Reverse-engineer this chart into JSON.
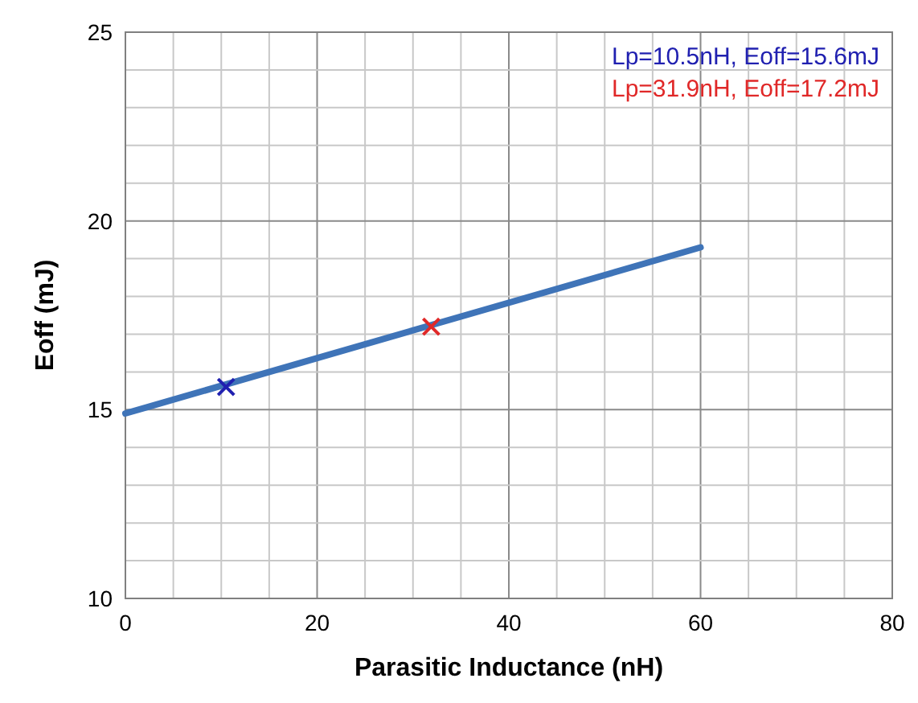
{
  "chart_data": {
    "type": "line",
    "xlabel": "Parasitic Inductance (nH)",
    "ylabel": "Eoff (mJ)",
    "xlim": [
      0,
      80
    ],
    "ylim": [
      10,
      25
    ],
    "xticks": [
      0,
      {
        "value": 5,
        "label": null
      },
      {
        "value": 10,
        "label": null
      },
      {
        "value": 15,
        "label": null
      },
      20,
      {
        "value": 25,
        "label": null
      },
      {
        "value": 30,
        "label": null
      },
      {
        "value": 35,
        "label": null
      },
      40,
      {
        "value": 45,
        "label": null
      },
      {
        "value": 50,
        "label": null
      },
      {
        "value": 55,
        "label": null
      },
      60,
      {
        "value": 65,
        "label": null
      },
      {
        "value": 70,
        "label": null
      },
      {
        "value": 75,
        "label": null
      },
      80
    ],
    "yticks": [
      10,
      {
        "value": 11,
        "label": null
      },
      {
        "value": 12,
        "label": null
      },
      {
        "value": 13,
        "label": null
      },
      {
        "value": 14,
        "label": null
      },
      15,
      {
        "value": 16,
        "label": null
      },
      {
        "value": 17,
        "label": null
      },
      {
        "value": 18,
        "label": null
      },
      {
        "value": 19,
        "label": null
      },
      20,
      {
        "value": 21,
        "label": null
      },
      {
        "value": 22,
        "label": null
      },
      {
        "value": 23,
        "label": null
      },
      {
        "value": 24,
        "label": null
      },
      25
    ],
    "grid": true,
    "legend": "top right",
    "line_style": "solid",
    "series": [
      {
        "color": "#3f74b8",
        "x": [
          0,
          60
        ],
        "values": [
          14.9,
          19.3
        ],
        "marker": "none"
      },
      {
        "type": "scatter",
        "name": "Lp=10.5nH, Eoff=15.6mJ",
        "color": "#2020b0",
        "x": [
          10.5
        ],
        "values": [
          15.6
        ],
        "marker": "cross"
      },
      {
        "type": "scatter",
        "name": "Lp=31.9nH, Eoff=17.2mJ",
        "color": "#e02828",
        "x": [
          31.9
        ],
        "values": [
          17.2
        ],
        "marker": "cross"
      }
    ]
  }
}
